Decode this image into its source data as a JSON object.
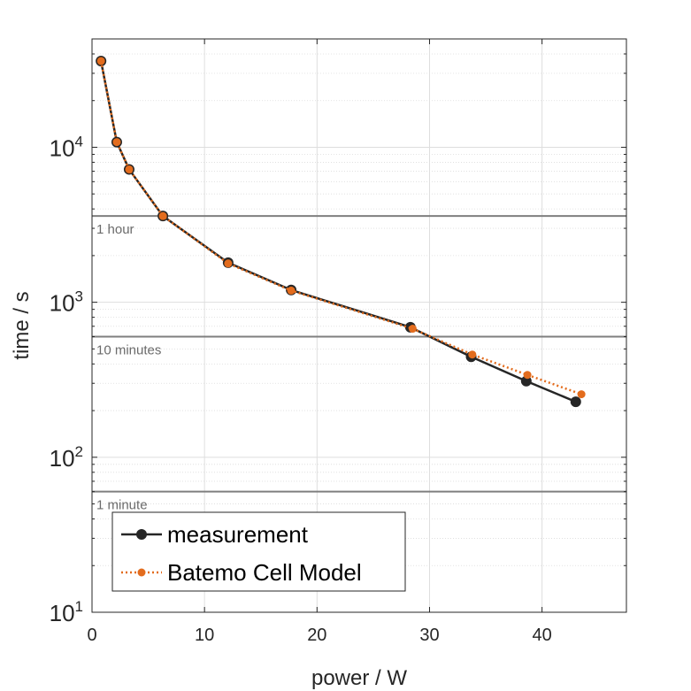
{
  "chart_data": {
    "type": "line",
    "xlabel": "power / W",
    "ylabel": "time / s",
    "xlim": [
      0,
      47.5
    ],
    "ylim": [
      10,
      50000
    ],
    "yscale": "log",
    "grid": true,
    "legend_position": "bottom-left",
    "x_ticks": [
      0,
      10,
      20,
      30,
      40
    ],
    "x_tick_labels": [
      "0",
      "10",
      "20",
      "30",
      "40"
    ],
    "y_ticks": [
      10,
      100,
      1000,
      10000
    ],
    "y_tick_labels": [
      {
        "base": "10",
        "exp": "1"
      },
      {
        "base": "10",
        "exp": "2"
      },
      {
        "base": "10",
        "exp": "3"
      },
      {
        "base": "10",
        "exp": "4"
      }
    ],
    "reference_lines": [
      {
        "value": 3600,
        "label": "1 hour"
      },
      {
        "value": 600,
        "label": "10 minutes"
      },
      {
        "value": 60,
        "label": "1 minute"
      }
    ],
    "series": [
      {
        "name": "measurement",
        "color": "#262626",
        "style": "solid",
        "x": [
          0.8,
          2.2,
          3.3,
          6.3,
          12.1,
          17.7,
          28.3,
          33.7,
          38.6,
          43.0
        ],
        "y": [
          36000,
          10800,
          7200,
          3600,
          1800,
          1200,
          690,
          445,
          310,
          228
        ]
      },
      {
        "name": "Batemo Cell Model",
        "color": "#e36c1d",
        "style": "dotted",
        "x": [
          0.8,
          2.2,
          3.3,
          6.3,
          12.1,
          17.7,
          28.5,
          33.8,
          38.7,
          43.5
        ],
        "y": [
          36000,
          10800,
          7200,
          3600,
          1780,
          1190,
          675,
          460,
          340,
          255
        ]
      }
    ]
  }
}
